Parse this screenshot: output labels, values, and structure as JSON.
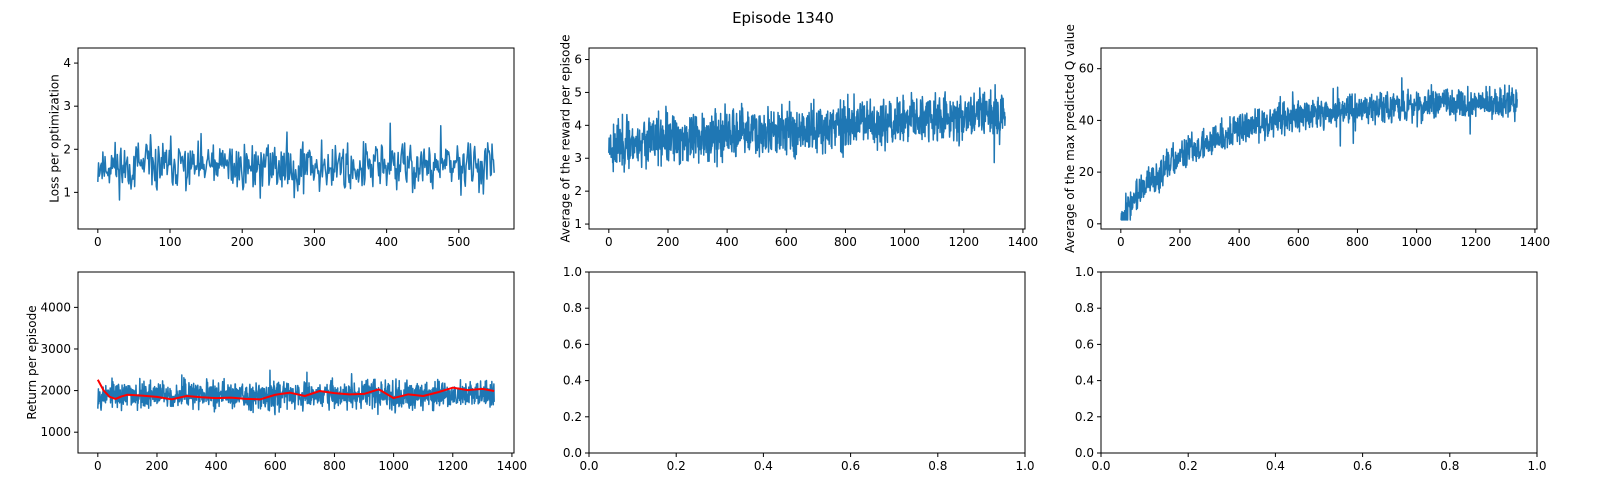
{
  "suptitle": "Episode 1340",
  "colors": {
    "line": "#1f77b4",
    "avg": "#ff0000",
    "axis": "#000000"
  },
  "chart_data": [
    {
      "id": "loss",
      "type": "line",
      "ylabel": "Loss per optimization",
      "xlim": [
        -27.45,
        576.45
      ],
      "ylim": [
        0.15,
        4.35
      ],
      "xticks": [
        0,
        100,
        200,
        300,
        400,
        500
      ],
      "yticks": [
        1,
        2,
        3,
        4
      ],
      "series": [
        {
          "x": [
            0,
            549
          ],
          "y": [
            1.6,
            1.6
          ],
          "noise": {
            "base": [
              1.6,
              1.6
            ],
            "amp": 0.85,
            "min": 0.3,
            "max": 4.15,
            "seed": 11
          }
        }
      ]
    },
    {
      "id": "reward",
      "type": "line",
      "ylabel": "Average of the reward per episode",
      "xlim": [
        -67,
        1407
      ],
      "ylim": [
        0.85,
        6.35
      ],
      "xticks": [
        0,
        200,
        400,
        600,
        800,
        1000,
        1200,
        1400
      ],
      "yticks": [
        1,
        2,
        3,
        4,
        5,
        6
      ],
      "series": [
        {
          "x": [
            0,
            1340
          ],
          "y": [
            3.4,
            4.4
          ],
          "noise": {
            "base": [
              3.4,
              4.4
            ],
            "amp": 1.1,
            "min": 1.15,
            "max": 6.15,
            "seed": 23
          }
        }
      ]
    },
    {
      "id": "qvalue",
      "type": "line",
      "ylabel": "Average of the max predicted Q value",
      "xlim": [
        -67,
        1407
      ],
      "ylim": [
        -2,
        68
      ],
      "xticks": [
        0,
        200,
        400,
        600,
        800,
        1000,
        1200,
        1400
      ],
      "yticks": [
        0,
        20,
        40,
        60
      ],
      "series": [
        {
          "x": [
            0,
            1340
          ],
          "y": [
            3,
            47
          ],
          "noise": {
            "base": [
              3,
              47
            ],
            "amp": 9,
            "min": 1.5,
            "max": 65,
            "seed": 37
          }
        }
      ]
    },
    {
      "id": "return",
      "type": "line",
      "ylabel": "Return per episode",
      "xlim": [
        -67,
        1407
      ],
      "ylim": [
        500,
        4850
      ],
      "xticks": [
        0,
        200,
        400,
        600,
        800,
        1000,
        1200,
        1400
      ],
      "yticks": [
        1000,
        2000,
        3000,
        4000
      ],
      "series": [
        {
          "x": [
            0,
            1340
          ],
          "y": [
            1900,
            1900
          ],
          "noise": {
            "base": [
              1900,
              1900
            ],
            "amp": 480,
            "min": 650,
            "max": 4650,
            "seed": 53
          }
        },
        {
          "name": "moving average",
          "avg": true,
          "x": [
            0,
            20,
            40,
            60,
            80,
            100,
            150,
            200,
            250,
            300,
            350,
            400,
            450,
            500,
            550,
            600,
            650,
            700,
            750,
            800,
            850,
            900,
            950,
            1000,
            1050,
            1100,
            1150,
            1200,
            1250,
            1300,
            1340
          ],
          "y": [
            2260,
            2000,
            1850,
            1800,
            1860,
            1900,
            1880,
            1850,
            1790,
            1870,
            1840,
            1820,
            1830,
            1800,
            1790,
            1900,
            1950,
            1870,
            1990,
            1940,
            1910,
            1920,
            2030,
            1820,
            1910,
            1870,
            1960,
            2070,
            2010,
            2040,
            1990
          ]
        }
      ]
    },
    {
      "id": "empty-1",
      "type": "line",
      "ylabel": "",
      "series": [],
      "xlim": [
        0,
        1
      ],
      "ylim": [
        0,
        1
      ],
      "xticks": [
        0.0,
        0.2,
        0.4,
        0.6,
        0.8,
        1.0
      ],
      "yticks": [
        0.0,
        0.2,
        0.4,
        0.6,
        0.8,
        1.0
      ]
    },
    {
      "id": "empty-2",
      "type": "line",
      "ylabel": "",
      "series": [],
      "xlim": [
        0,
        1
      ],
      "ylim": [
        0,
        1
      ],
      "xticks": [
        0.0,
        0.2,
        0.4,
        0.6,
        0.8,
        1.0
      ],
      "yticks": [
        0.0,
        0.2,
        0.4,
        0.6,
        0.8,
        1.0
      ]
    }
  ]
}
